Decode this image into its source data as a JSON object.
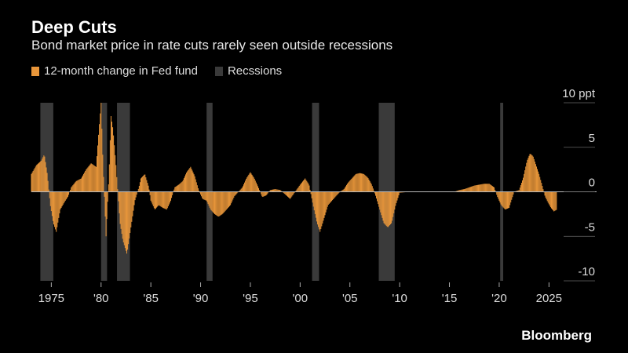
{
  "chart_data": {
    "type": "bar",
    "title": "Deep Cuts",
    "subtitle": "Bond market price in rate cuts rarely seen outside recessions",
    "legend_position": "top-left",
    "ylim": [
      -10,
      10
    ],
    "xlim": [
      1973,
      2026
    ],
    "y_ticks": [
      {
        "value": 10,
        "label": "10 ppt"
      },
      {
        "value": 5,
        "label": "5"
      },
      {
        "value": 0,
        "label": "0"
      },
      {
        "value": -5,
        "label": "-5"
      },
      {
        "value": -10,
        "label": "-10"
      }
    ],
    "x_ticks": [
      {
        "value": 1975,
        "label": "1975"
      },
      {
        "value": 1980,
        "label": "'80"
      },
      {
        "value": 1985,
        "label": "'85"
      },
      {
        "value": 1990,
        "label": "'90"
      },
      {
        "value": 1995,
        "label": "'95"
      },
      {
        "value": 2000,
        "label": "'00"
      },
      {
        "value": 2005,
        "label": "'05"
      },
      {
        "value": 2010,
        "label": "'10"
      },
      {
        "value": 2015,
        "label": "'15"
      },
      {
        "value": 2020,
        "label": "'20"
      },
      {
        "value": 2025,
        "label": "2025"
      }
    ],
    "series": [
      {
        "name": "12-month change in Fed fund",
        "color": "#e8963a",
        "points": [
          [
            1973.0,
            2.0
          ],
          [
            1973.5,
            3.0
          ],
          [
            1974.0,
            3.5
          ],
          [
            1974.3,
            4.2
          ],
          [
            1974.6,
            2.0
          ],
          [
            1974.9,
            -1.5
          ],
          [
            1975.2,
            -3.5
          ],
          [
            1975.5,
            -4.5
          ],
          [
            1975.9,
            -2.0
          ],
          [
            1976.3,
            -1.2
          ],
          [
            1976.7,
            -0.5
          ],
          [
            1977.0,
            0.5
          ],
          [
            1977.5,
            1.2
          ],
          [
            1978.0,
            1.5
          ],
          [
            1978.5,
            2.5
          ],
          [
            1979.0,
            3.2
          ],
          [
            1979.5,
            2.8
          ],
          [
            1980.0,
            10.0
          ],
          [
            1980.2,
            3.0
          ],
          [
            1980.5,
            -5.0
          ],
          [
            1980.8,
            2.0
          ],
          [
            1981.0,
            8.5
          ],
          [
            1981.2,
            7.0
          ],
          [
            1981.5,
            3.0
          ],
          [
            1981.9,
            -3.5
          ],
          [
            1982.2,
            -5.5
          ],
          [
            1982.6,
            -7.0
          ],
          [
            1983.0,
            -4.0
          ],
          [
            1983.4,
            -1.0
          ],
          [
            1983.8,
            0.5
          ],
          [
            1984.0,
            1.5
          ],
          [
            1984.4,
            2.0
          ],
          [
            1984.8,
            0.5
          ],
          [
            1985.0,
            -1.0
          ],
          [
            1985.4,
            -2.0
          ],
          [
            1985.8,
            -1.5
          ],
          [
            1986.2,
            -1.8
          ],
          [
            1986.6,
            -2.0
          ],
          [
            1987.0,
            -1.0
          ],
          [
            1987.4,
            0.5
          ],
          [
            1987.8,
            0.8
          ],
          [
            1988.2,
            1.2
          ],
          [
            1988.6,
            2.2
          ],
          [
            1989.0,
            2.8
          ],
          [
            1989.4,
            1.8
          ],
          [
            1989.8,
            0.2
          ],
          [
            1990.2,
            -0.8
          ],
          [
            1990.6,
            -1.0
          ],
          [
            1991.0,
            -2.0
          ],
          [
            1991.4,
            -2.5
          ],
          [
            1991.8,
            -2.8
          ],
          [
            1992.2,
            -2.5
          ],
          [
            1992.6,
            -2.0
          ],
          [
            1993.0,
            -1.5
          ],
          [
            1993.4,
            -0.5
          ],
          [
            1993.8,
            0.0
          ],
          [
            1994.2,
            0.5
          ],
          [
            1994.6,
            1.5
          ],
          [
            1995.0,
            2.2
          ],
          [
            1995.4,
            1.5
          ],
          [
            1995.8,
            0.5
          ],
          [
            1996.2,
            -0.6
          ],
          [
            1996.6,
            -0.4
          ],
          [
            1997.0,
            0.2
          ],
          [
            1997.5,
            0.3
          ],
          [
            1998.0,
            0.2
          ],
          [
            1998.5,
            -0.3
          ],
          [
            1999.0,
            -0.8
          ],
          [
            1999.5,
            0.0
          ],
          [
            2000.0,
            0.8
          ],
          [
            2000.5,
            1.5
          ],
          [
            2000.9,
            0.8
          ],
          [
            2001.3,
            -1.5
          ],
          [
            2001.7,
            -3.5
          ],
          [
            2002.0,
            -4.5
          ],
          [
            2002.4,
            -3.0
          ],
          [
            2002.8,
            -1.5
          ],
          [
            2003.2,
            -1.0
          ],
          [
            2003.6,
            -0.5
          ],
          [
            2004.0,
            0.0
          ],
          [
            2004.4,
            0.3
          ],
          [
            2004.8,
            1.0
          ],
          [
            2005.2,
            1.5
          ],
          [
            2005.6,
            2.0
          ],
          [
            2006.0,
            2.1
          ],
          [
            2006.4,
            2.0
          ],
          [
            2006.8,
            1.6
          ],
          [
            2007.2,
            0.8
          ],
          [
            2007.6,
            -0.5
          ],
          [
            2008.0,
            -2.0
          ],
          [
            2008.4,
            -3.5
          ],
          [
            2008.8,
            -4.0
          ],
          [
            2009.2,
            -3.5
          ],
          [
            2009.6,
            -1.5
          ],
          [
            2010.0,
            -0.1
          ],
          [
            2011.0,
            0.0
          ],
          [
            2012.0,
            0.0
          ],
          [
            2013.0,
            0.0
          ],
          [
            2014.0,
            0.0
          ],
          [
            2015.5,
            0.0
          ],
          [
            2016.0,
            0.2
          ],
          [
            2016.5,
            0.3
          ],
          [
            2017.0,
            0.5
          ],
          [
            2017.5,
            0.7
          ],
          [
            2018.0,
            0.8
          ],
          [
            2018.5,
            0.9
          ],
          [
            2019.0,
            0.9
          ],
          [
            2019.5,
            0.5
          ],
          [
            2019.8,
            -0.5
          ],
          [
            2020.2,
            -1.5
          ],
          [
            2020.6,
            -2.0
          ],
          [
            2021.0,
            -1.8
          ],
          [
            2021.5,
            0.0
          ],
          [
            2022.0,
            0.2
          ],
          [
            2022.4,
            1.5
          ],
          [
            2022.8,
            3.5
          ],
          [
            2023.1,
            4.3
          ],
          [
            2023.4,
            4.0
          ],
          [
            2023.7,
            3.0
          ],
          [
            2024.0,
            2.0
          ],
          [
            2024.3,
            0.8
          ],
          [
            2024.6,
            -0.5
          ],
          [
            2024.9,
            -1.2
          ],
          [
            2025.2,
            -1.8
          ],
          [
            2025.5,
            -2.2
          ],
          [
            2025.8,
            -2.0
          ]
        ]
      },
      {
        "name": "Recssions",
        "color": "#3a3a3a",
        "periods": [
          [
            1973.9,
            1975.2
          ],
          [
            1980.0,
            1980.6
          ],
          [
            1981.6,
            1982.9
          ],
          [
            1990.6,
            1991.2
          ],
          [
            2001.2,
            2001.9
          ],
          [
            2007.9,
            2009.5
          ],
          [
            2020.1,
            2020.4
          ]
        ]
      }
    ],
    "source": "Bloomberg"
  }
}
